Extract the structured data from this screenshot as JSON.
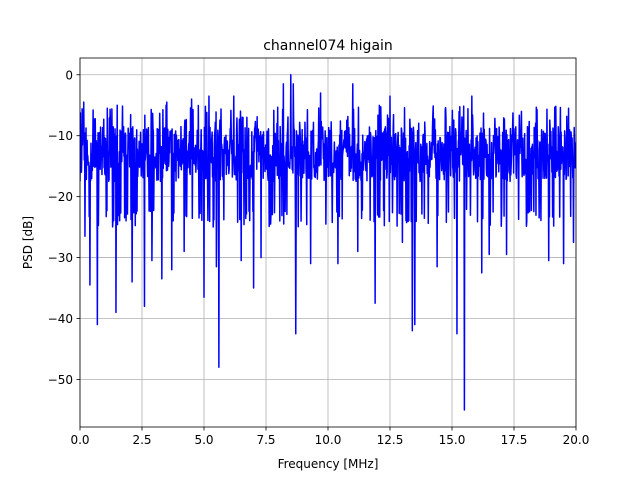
{
  "chart_data": {
    "type": "line",
    "title": "channel074 higain",
    "xlabel": "Frequency [MHz]",
    "ylabel": "PSD [dB]",
    "xlim": [
      0,
      20
    ],
    "ylim": [
      -57.8,
      2.75
    ],
    "grid": true,
    "legend": "none",
    "x_ticks": [
      0.0,
      2.5,
      5.0,
      7.5,
      10.0,
      12.5,
      15.0,
      17.5,
      20.0
    ],
    "x_tick_labels": [
      "0.0",
      "2.5",
      "5.0",
      "7.5",
      "10.0",
      "12.5",
      "15.0",
      "17.5",
      "20.0"
    ],
    "y_ticks": [
      0,
      -10,
      -20,
      -30,
      -40,
      -50
    ],
    "y_tick_labels": [
      "0",
      "−10",
      "−20",
      "−30",
      "−40",
      "−50"
    ],
    "series": [
      {
        "color": "#0000ff",
        "x_start": 0,
        "x_end": 20,
        "baseline_range": [
          -17.5,
          -8.5
        ],
        "spikes": [
          {
            "x": 0.15,
            "y": -4.5
          },
          {
            "x": 0.2,
            "y": -26.5
          },
          {
            "x": 0.4,
            "y": -34.5
          },
          {
            "x": 0.7,
            "y": -41.0
          },
          {
            "x": 1.1,
            "y": -5.5
          },
          {
            "x": 1.45,
            "y": -39.0
          },
          {
            "x": 1.5,
            "y": -5.0
          },
          {
            "x": 2.1,
            "y": -34.0
          },
          {
            "x": 2.6,
            "y": -38.0
          },
          {
            "x": 2.9,
            "y": -30.5
          },
          {
            "x": 3.3,
            "y": -33.5
          },
          {
            "x": 3.5,
            "y": -4.5
          },
          {
            "x": 3.7,
            "y": -32.0
          },
          {
            "x": 4.2,
            "y": -29.0
          },
          {
            "x": 4.5,
            "y": -4.0
          },
          {
            "x": 5.0,
            "y": -36.5
          },
          {
            "x": 5.2,
            "y": -3.5
          },
          {
            "x": 5.5,
            "y": -31.5
          },
          {
            "x": 5.6,
            "y": -48.0
          },
          {
            "x": 6.2,
            "y": -3.5
          },
          {
            "x": 6.5,
            "y": -30.5
          },
          {
            "x": 7.0,
            "y": -35.0
          },
          {
            "x": 7.3,
            "y": -30.0
          },
          {
            "x": 8.2,
            "y": -1.5
          },
          {
            "x": 8.5,
            "y": 0.0
          },
          {
            "x": 8.6,
            "y": -1.5
          },
          {
            "x": 8.7,
            "y": -42.5
          },
          {
            "x": 9.3,
            "y": -31.0
          },
          {
            "x": 9.7,
            "y": -3.0
          },
          {
            "x": 10.4,
            "y": -31.0
          },
          {
            "x": 11.0,
            "y": -1.5
          },
          {
            "x": 11.2,
            "y": -29.0
          },
          {
            "x": 11.9,
            "y": -37.5
          },
          {
            "x": 12.5,
            "y": -3.5
          },
          {
            "x": 13.0,
            "y": -27.5
          },
          {
            "x": 13.4,
            "y": -42.0
          },
          {
            "x": 13.5,
            "y": -41.0
          },
          {
            "x": 14.4,
            "y": -31.5
          },
          {
            "x": 15.2,
            "y": -42.5
          },
          {
            "x": 15.5,
            "y": -55.0
          },
          {
            "x": 15.8,
            "y": -3.5
          },
          {
            "x": 16.2,
            "y": -32.5
          },
          {
            "x": 16.5,
            "y": -29.5
          },
          {
            "x": 17.2,
            "y": -29.5
          },
          {
            "x": 17.8,
            "y": -6.0
          },
          {
            "x": 18.9,
            "y": -30.5
          },
          {
            "x": 19.5,
            "y": -31.0
          },
          {
            "x": 19.7,
            "y": -5.5
          },
          {
            "x": 19.9,
            "y": -27.5
          }
        ]
      }
    ]
  }
}
